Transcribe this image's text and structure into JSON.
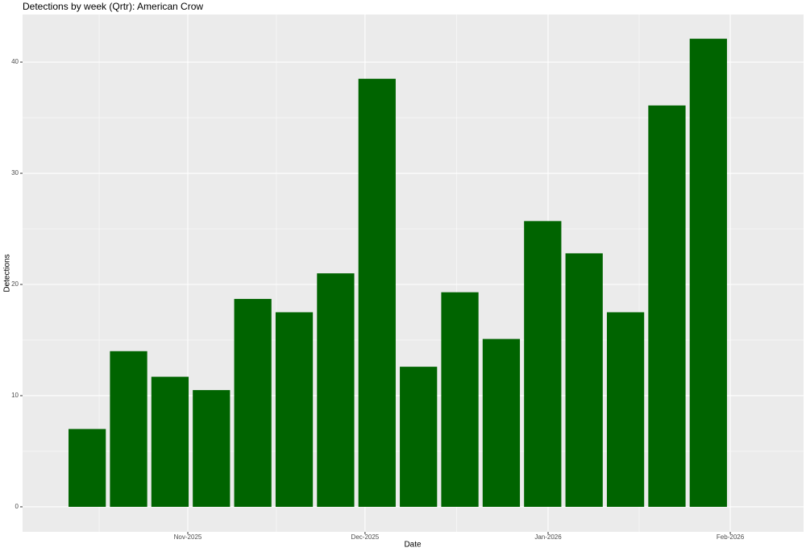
{
  "chart_data": {
    "type": "bar",
    "title": "Detections by week (Qrtr): American Crow",
    "x_label": "Date",
    "y_label": "Detections",
    "categories": [
      null,
      null,
      null,
      null,
      null,
      null,
      null,
      null,
      null,
      null,
      null,
      null,
      null,
      null,
      null,
      null
    ],
    "values": [
      7,
      14,
      11.7,
      10.5,
      18.7,
      17.5,
      21,
      38.5,
      12.6,
      19.3,
      15.1,
      25.7,
      22.8,
      17.5,
      36.1,
      42.1
    ],
    "color": "#006400",
    "xlim": [
      -1.56,
      17.3
    ],
    "xticks": [
      {
        "value": 2.43,
        "label": "Nov-2025"
      },
      {
        "value": 6.71,
        "label": "Dec-2025"
      },
      {
        "value": 11.13,
        "label": "Jan-2026"
      },
      {
        "value": 15.53,
        "label": "Feb-2026"
      }
    ],
    "ylim": [
      -2.25,
      44.28
    ],
    "yticks": [
      0,
      10,
      20,
      30,
      40
    ],
    "grid": true
  }
}
